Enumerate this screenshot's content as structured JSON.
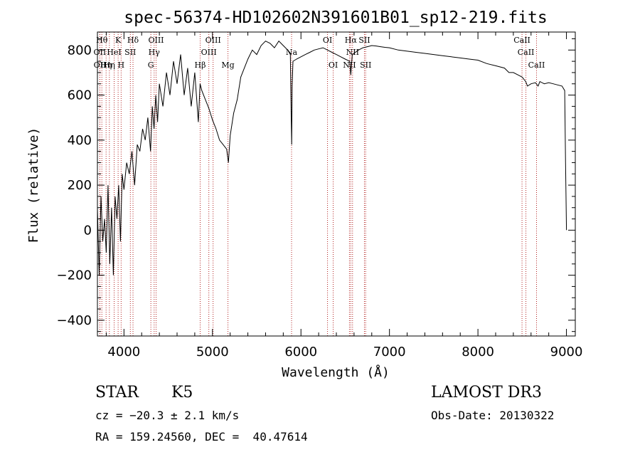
{
  "chart_data": {
    "type": "line",
    "title": "spec-56374-HD102602N391601B01_sp12-219.fits",
    "xlabel": "Wavelength (Å)",
    "ylabel": "Flux (relative)",
    "xlim": [
      3700,
      9100
    ],
    "ylim": [
      -470,
      880
    ],
    "x_ticks": [
      4000,
      5000,
      6000,
      7000,
      8000,
      9000
    ],
    "y_ticks": [
      -400,
      -200,
      0,
      200,
      400,
      600,
      800
    ],
    "grid": false,
    "series": [
      {
        "x": [
          3700,
          3720,
          3740,
          3760,
          3780,
          3800,
          3820,
          3840,
          3860,
          3880,
          3900,
          3920,
          3940,
          3960,
          3980,
          4000,
          4030,
          4060,
          4090,
          4120,
          4150,
          4180,
          4210,
          4240,
          4270,
          4300,
          4320,
          4340,
          4360,
          4380,
          4400,
          4440,
          4480,
          4520,
          4560,
          4600,
          4640,
          4680,
          4720,
          4760,
          4800,
          4840,
          4860,
          4880,
          4920,
          4960,
          5000,
          5040,
          5080,
          5120,
          5160,
          5180,
          5200,
          5240,
          5280,
          5320,
          5360,
          5400,
          5450,
          5500,
          5550,
          5600,
          5650,
          5700,
          5750,
          5800,
          5850,
          5880,
          5890,
          5895,
          5900,
          5910,
          5950,
          6000,
          6050,
          6100,
          6150,
          6200,
          6250,
          6300,
          6350,
          6400,
          6450,
          6500,
          6550,
          6563,
          6580,
          6650,
          6700,
          6750,
          6800,
          6850,
          6900,
          6950,
          7000,
          7100,
          7200,
          7300,
          7400,
          7500,
          7600,
          7700,
          7800,
          7900,
          8000,
          8100,
          8200,
          8300,
          8350,
          8400,
          8450,
          8500,
          8540,
          8560,
          8600,
          8650,
          8680,
          8700,
          8750,
          8800,
          8850,
          8900,
          8950,
          8980,
          8990,
          9000
        ],
        "y": [
          100,
          -200,
          150,
          -50,
          50,
          -100,
          200,
          -150,
          100,
          -200,
          150,
          50,
          200,
          -50,
          250,
          180,
          300,
          250,
          350,
          200,
          380,
          350,
          450,
          400,
          500,
          350,
          550,
          450,
          600,
          480,
          650,
          550,
          700,
          600,
          750,
          650,
          780,
          600,
          720,
          550,
          700,
          480,
          650,
          620,
          580,
          540,
          490,
          450,
          400,
          380,
          360,
          300,
          420,
          520,
          580,
          680,
          720,
          760,
          800,
          780,
          820,
          840,
          830,
          810,
          840,
          820,
          800,
          780,
          500,
          380,
          640,
          750,
          760,
          770,
          780,
          790,
          800,
          805,
          810,
          800,
          790,
          780,
          770,
          760,
          750,
          690,
          780,
          800,
          810,
          815,
          820,
          818,
          815,
          812,
          810,
          800,
          795,
          790,
          785,
          780,
          775,
          770,
          765,
          760,
          755,
          740,
          730,
          720,
          700,
          700,
          690,
          680,
          660,
          640,
          650,
          655,
          640,
          660,
          650,
          655,
          650,
          645,
          640,
          620,
          300,
          0
        ]
      }
    ],
    "lines": [
      {
        "w": 3750,
        "label": "Hθ",
        "row": 1
      },
      {
        "w": 3727,
        "label": "OII",
        "row": 2
      },
      {
        "w": 3728,
        "label": "OII",
        "row": 3
      },
      {
        "w": 3798,
        "label": "Hη",
        "row": 3
      },
      {
        "w": 3835,
        "label": "Hη",
        "row": 3
      },
      {
        "w": 3889,
        "label": "HeI",
        "row": 2
      },
      {
        "w": 3934,
        "label": "K",
        "row": 1
      },
      {
        "w": 3968,
        "label": "H",
        "row": 3
      },
      {
        "w": 4072,
        "label": "SII",
        "row": 2
      },
      {
        "w": 4102,
        "label": "Hδ",
        "row": 1
      },
      {
        "w": 4304,
        "label": "G",
        "row": 3
      },
      {
        "w": 4341,
        "label": "Hγ",
        "row": 2
      },
      {
        "w": 4363,
        "label": "OIII",
        "row": 1
      },
      {
        "w": 4861,
        "label": "Hβ",
        "row": 3
      },
      {
        "w": 4959,
        "label": "OIII",
        "row": 2
      },
      {
        "w": 5007,
        "label": "OIII",
        "row": 1
      },
      {
        "w": 5175,
        "label": "Mg",
        "row": 3
      },
      {
        "w": 5894,
        "label": "Na",
        "row": 2
      },
      {
        "w": 6300,
        "label": "OI",
        "row": 1
      },
      {
        "w": 6364,
        "label": "OI",
        "row": 3
      },
      {
        "w": 6548,
        "label": "NII",
        "row": 3
      },
      {
        "w": 6563,
        "label": "Hα",
        "row": 1
      },
      {
        "w": 6583,
        "label": "NII",
        "row": 2
      },
      {
        "w": 6717,
        "label": "SII",
        "row": 1
      },
      {
        "w": 6731,
        "label": "SII",
        "row": 3
      },
      {
        "w": 8498,
        "label": "CaII",
        "row": 1
      },
      {
        "w": 8542,
        "label": "CaII",
        "row": 2
      },
      {
        "w": 8662,
        "label": "CaII",
        "row": 3
      }
    ],
    "colors": {
      "spectrum": "#000000",
      "line_marker": "#b22222"
    }
  },
  "info": {
    "class": "STAR",
    "subclass": "K5",
    "survey": "LAMOST DR3",
    "cz": "cz = −20.3 ± 2.1 km/s",
    "obs_date": "Obs-Date: 20130322",
    "radec": "RA = 159.24560, DEC =  40.47614"
  }
}
